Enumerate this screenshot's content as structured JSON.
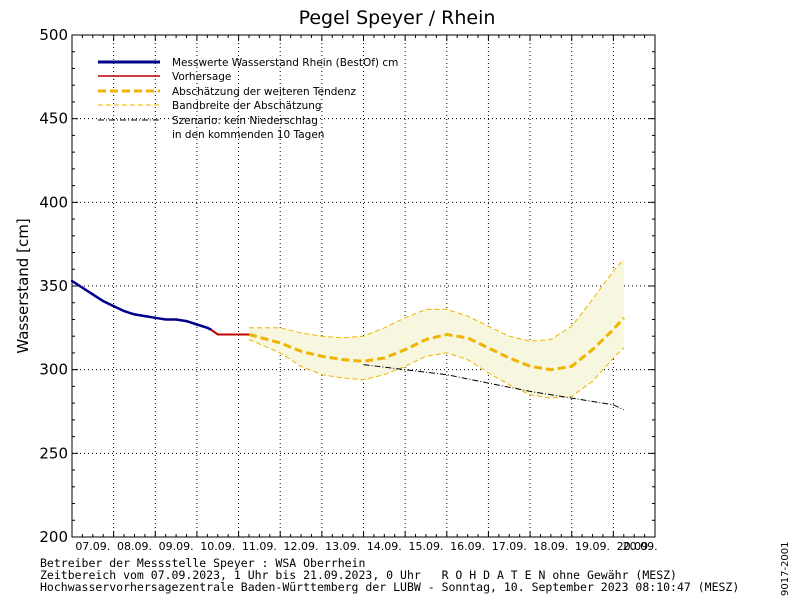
{
  "chart_data": {
    "type": "line",
    "title": "Pegel Speyer / Rhein",
    "ylabel": "Wasserstand [cm]",
    "xlabel": "",
    "ylim": [
      200,
      500
    ],
    "yticks": [
      200,
      250,
      300,
      350,
      400,
      450,
      500
    ],
    "x_day_labels": [
      "07.09.",
      "08.09.",
      "09.09.",
      "10.09.",
      "11.09.",
      "12.09.",
      "13.09.",
      "14.09.",
      "15.09.",
      "16.09.",
      "17.09.",
      "18.09.",
      "19.09.",
      "20.09."
    ],
    "xlim_days": [
      0,
      14
    ],
    "grid": true,
    "legend_position": "top-left",
    "legend": [
      {
        "label": "Messwerte Wasserstand Rhein (BestOf)  cm",
        "style": "measured"
      },
      {
        "label": "Vorhersage",
        "style": "forecast"
      },
      {
        "label": "Abschätzung der weiteren Tendenz",
        "style": "tendency"
      },
      {
        "label": "Bandbreite der Abschätzung",
        "style": "band"
      },
      {
        "label": "Szenario: kein Niederschlag",
        "style": "scenario"
      },
      {
        "label": "in den kommenden 10 Tagen",
        "style": "none"
      }
    ],
    "series": [
      {
        "name": "Messwerte Wasserstand Rhein (BestOf)  cm",
        "x": [
          "07.09.2023 00:00",
          "07.09.2023 06:00",
          "07.09.2023 12:00",
          "07.09.2023 18:00",
          "08.09.2023 00:00",
          "08.09.2023 06:00",
          "08.09.2023 12:00",
          "08.09.2023 18:00",
          "09.09.2023 00:00",
          "09.09.2023 06:00",
          "09.09.2023 12:00",
          "09.09.2023 18:00",
          "10.09.2023 00:00",
          "10.09.2023 06:00",
          "10.09.2023 08:00"
        ],
        "values": [
          353,
          349,
          345,
          341,
          338,
          335,
          333,
          332,
          331,
          330,
          330,
          329,
          327,
          325,
          324
        ],
        "color": "#00008b"
      },
      {
        "name": "Vorhersage",
        "x": [
          "10.09.2023 08:00",
          "10.09.2023 12:00",
          "10.09.2023 18:00",
          "11.09.2023 00:00",
          "11.09.2023 06:00"
        ],
        "values": [
          324,
          321,
          321,
          321,
          321
        ],
        "color": "#c00000"
      },
      {
        "name": "Abschätzung der weiteren Tendenz",
        "x": [
          "11.09.2023 06:00",
          "12.09.2023 00:00",
          "12.09.2023 12:00",
          "13.09.2023 00:00",
          "13.09.2023 12:00",
          "14.09.2023 00:00",
          "14.09.2023 12:00",
          "15.09.2023 00:00",
          "15.09.2023 12:00",
          "16.09.2023 00:00",
          "16.09.2023 12:00",
          "17.09.2023 00:00",
          "17.09.2023 12:00",
          "18.09.2023 00:00",
          "18.09.2023 12:00",
          "19.09.2023 00:00",
          "19.09.2023 12:00",
          "20.09.2023 00:00",
          "20.09.2023 06:00"
        ],
        "values": [
          321,
          316,
          311,
          308,
          306,
          305,
          307,
          312,
          318,
          321,
          319,
          313,
          307,
          302,
          300,
          302,
          312,
          324,
          331
        ],
        "color": "#f0b400"
      },
      {
        "name": "Bandbreite der Abschätzung (oben)",
        "x": [
          "11.09.2023 06:00",
          "12.09.2023 00:00",
          "12.09.2023 12:00",
          "13.09.2023 00:00",
          "13.09.2023 12:00",
          "14.09.2023 00:00",
          "14.09.2023 12:00",
          "15.09.2023 00:00",
          "15.09.2023 12:00",
          "16.09.2023 00:00",
          "16.09.2023 12:00",
          "17.09.2023 00:00",
          "17.09.2023 12:00",
          "18.09.2023 00:00",
          "18.09.2023 12:00",
          "19.09.2023 00:00",
          "19.09.2023 12:00",
          "20.09.2023 00:00",
          "20.09.2023 06:00"
        ],
        "values": [
          325,
          325,
          322,
          320,
          319,
          320,
          325,
          331,
          336,
          336,
          332,
          326,
          320,
          317,
          318,
          326,
          342,
          359,
          366
        ],
        "color": "#f0b400"
      },
      {
        "name": "Bandbreite der Abschätzung (unten)",
        "x": [
          "11.09.2023 06:00",
          "12.09.2023 00:00",
          "12.09.2023 12:00",
          "13.09.2023 00:00",
          "13.09.2023 12:00",
          "14.09.2023 00:00",
          "14.09.2023 12:00",
          "15.09.2023 00:00",
          "15.09.2023 12:00",
          "16.09.2023 00:00",
          "16.09.2023 12:00",
          "17.09.2023 00:00",
          "17.09.2023 12:00",
          "18.09.2023 00:00",
          "18.09.2023 12:00",
          "19.09.2023 00:00",
          "19.09.2023 12:00",
          "20.09.2023 00:00",
          "20.09.2023 06:00"
        ],
        "values": [
          318,
          310,
          302,
          297,
          295,
          294,
          297,
          302,
          308,
          310,
          306,
          298,
          291,
          285,
          283,
          284,
          293,
          307,
          313
        ],
        "color": "#f0b400"
      },
      {
        "name": "Szenario: kein Niederschlag",
        "x": [
          "14.09.2023 00:00",
          "15.09.2023 00:00",
          "16.09.2023 00:00",
          "17.09.2023 00:00",
          "18.09.2023 00:00",
          "19.09.2023 00:00",
          "20.09.2023 00:00",
          "20.09.2023 06:00"
        ],
        "values": [
          303,
          300,
          297,
          292,
          287,
          283,
          279,
          276
        ],
        "color": "#000000"
      }
    ],
    "band_fill_color": "#f7f7e0"
  },
  "footer": {
    "line1": "Betreiber der Messstelle Speyer : WSA Oberrhein",
    "line2": "Zeitbereich vom 07.09.2023, 1 Uhr bis 21.09.2023, 0 Uhr   R O H D A T E N ohne Gewähr (MESZ)",
    "line3": "Hochwasservorhersagezentrale Baden-Württemberg der LUBW - Sonntag, 10. September 2023 08:10:47 (MESZ)"
  },
  "code": "9017-2001"
}
